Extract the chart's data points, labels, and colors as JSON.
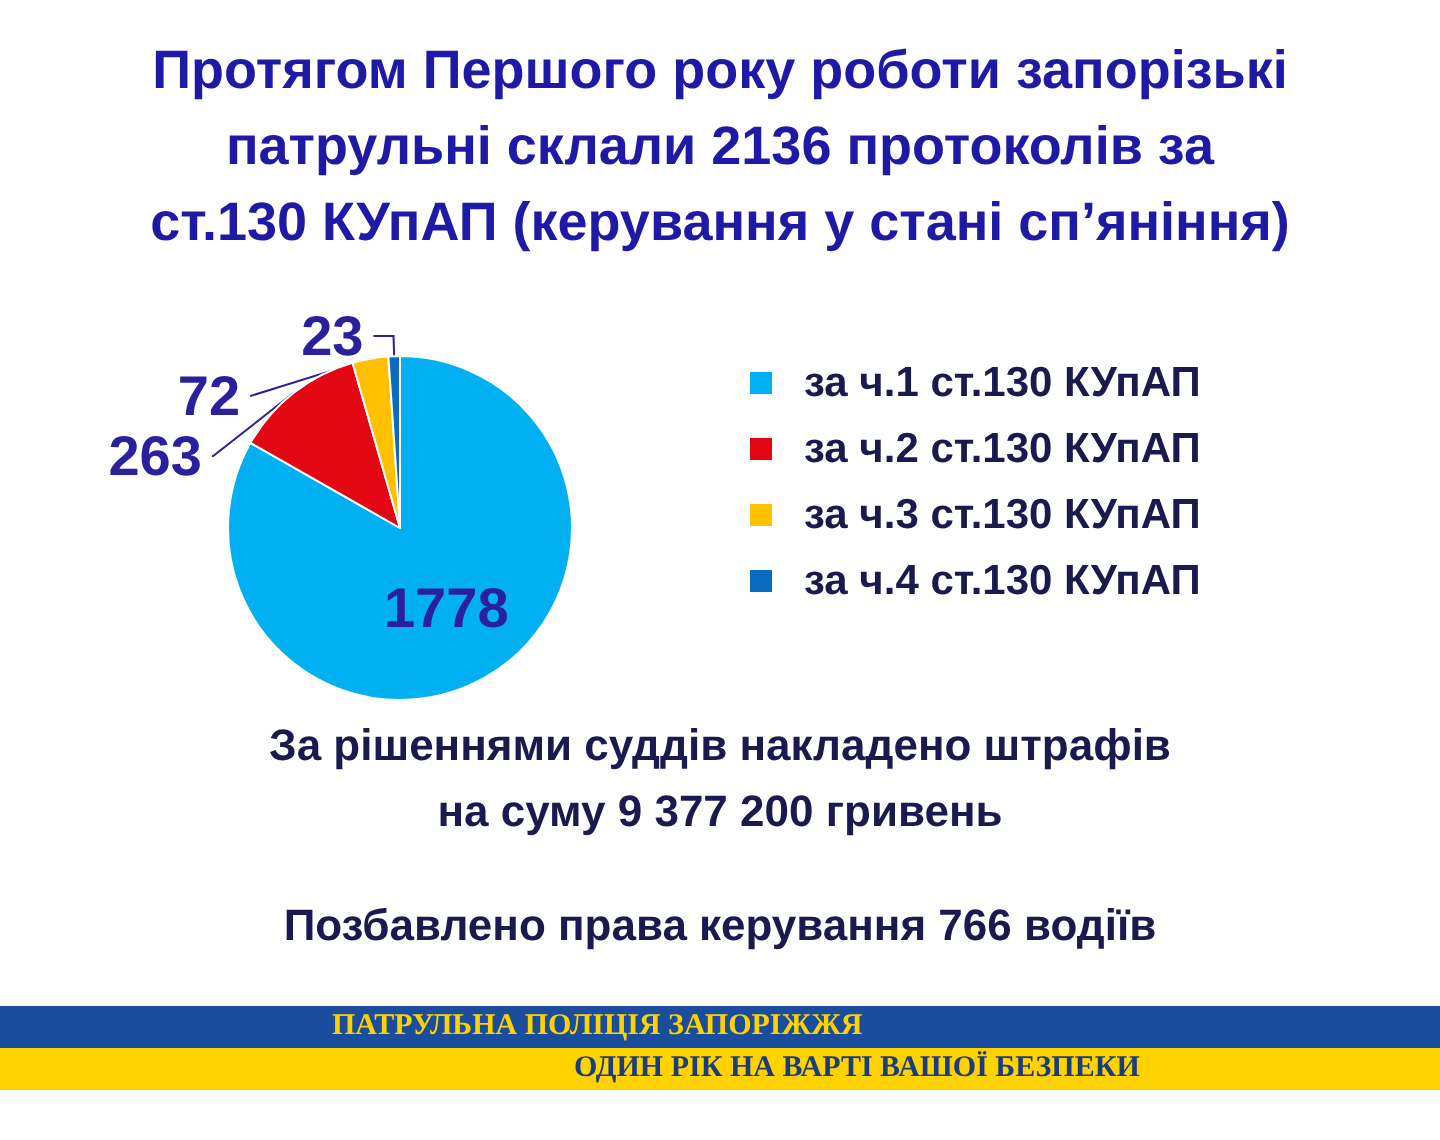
{
  "chart_data": {
    "type": "pie",
    "title": "Протягом Першого року роботи запорізькі патрульні склали 2136 протоколів за ст.130 КУпАП (керування у стані сп’яніння)",
    "categories": [
      "за ч.1 ст.130 КУпАП",
      "за ч.2 ст.130 КУпАП",
      "за ч.3 ст.130 КУпАП",
      "за ч.4 ст.130 КУпАП"
    ],
    "values": [
      1778,
      263,
      72,
      23
    ],
    "colors": [
      "#00b0f0",
      "#e30613",
      "#ffc000",
      "#0a6cc0"
    ],
    "data_labels": true,
    "legend": "right",
    "annotations": [
      "За рішеннями суддів накладено штрафів на суму 9 377 200 гривень",
      "Позбавлено права керування 766 водіїв",
      "ПАТРУЛЬНА ПОЛІЦІЯ ЗАПОРІЖЖЯ",
      "ОДИН РІК НА ВАРТІ ВАШОЇ БЕЗПЕКИ"
    ]
  }
}
